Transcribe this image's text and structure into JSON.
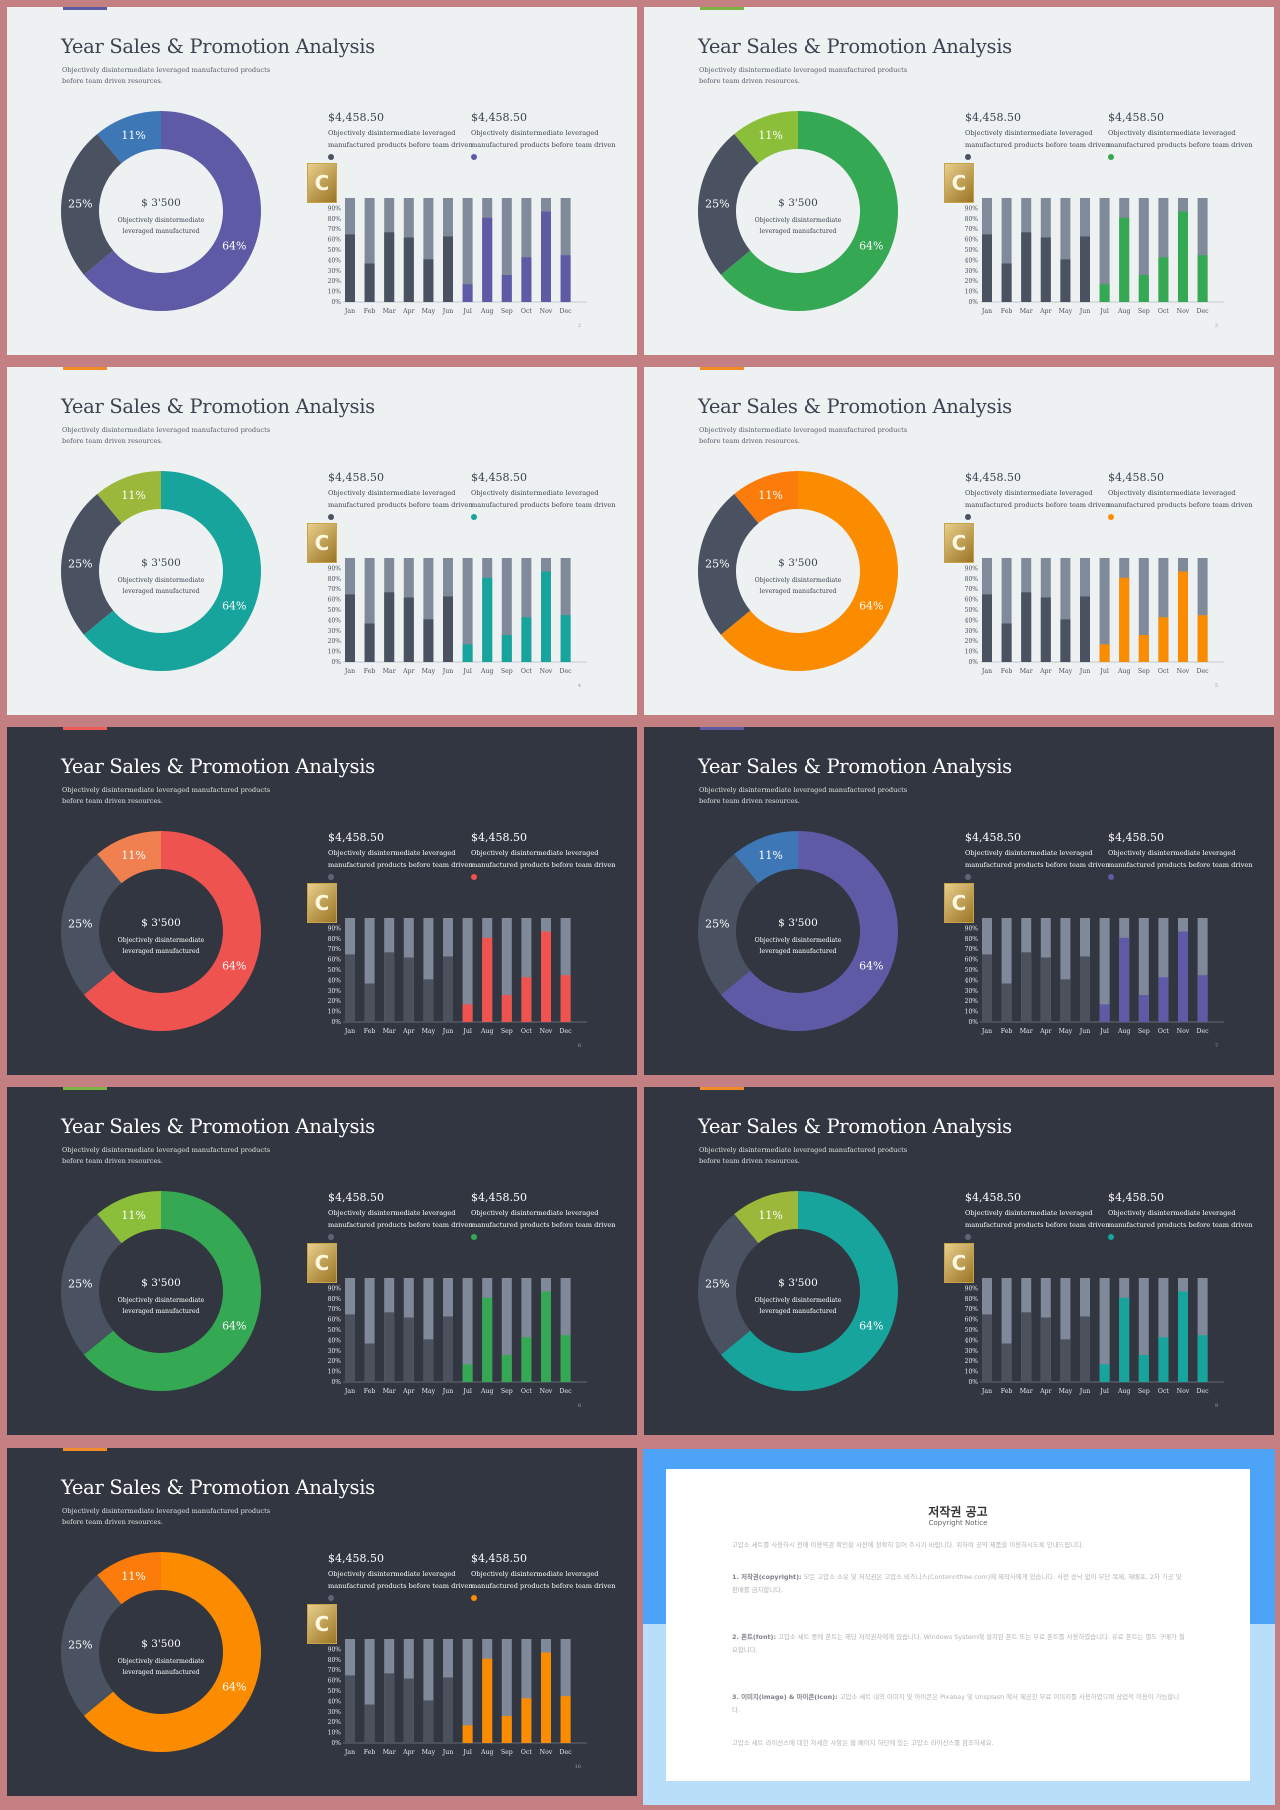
{
  "slides": [
    {
      "page": "2",
      "theme": "light",
      "accent": "#5c5aa3",
      "bar_accent": "#5e5aa6",
      "donut_gray": "#4a5160",
      "donut_small": "#3d77b6"
    },
    {
      "page": "3",
      "theme": "light",
      "accent": "#7cb342",
      "bar_accent": "#34a853",
      "donut_gray": "#4a5160",
      "donut_small": "#8bbf3a"
    },
    {
      "page": "4",
      "theme": "light",
      "accent": "#f28c28",
      "bar_accent": "#17a49d",
      "donut_gray": "#4a5160",
      "donut_small": "#9bb83a"
    },
    {
      "page": "5",
      "theme": "light",
      "accent": "#f28c28",
      "bar_accent": "#fb8c00",
      "donut_gray": "#4a5160",
      "donut_small": "#fb7c0a"
    },
    {
      "page": "6",
      "theme": "dark",
      "accent": "#ef5b56",
      "bar_accent": "#ef5350",
      "donut_gray": "#4a5160",
      "donut_small": "#f08050"
    },
    {
      "page": "7",
      "theme": "dark",
      "accent": "#5c5aa3",
      "bar_accent": "#5e5aa6",
      "donut_gray": "#4a5160",
      "donut_small": "#3d77b6"
    },
    {
      "page": "8",
      "theme": "dark",
      "accent": "#7cb342",
      "bar_accent": "#34a853",
      "donut_gray": "#4a5160",
      "donut_small": "#8bbf3a"
    },
    {
      "page": "9",
      "theme": "dark",
      "accent": "#f28c28",
      "bar_accent": "#17a49d",
      "donut_gray": "#4a5160",
      "donut_small": "#9bb83a"
    },
    {
      "page": "10",
      "theme": "dark",
      "accent": "#f28c28",
      "bar_accent": "#fb8c00",
      "donut_gray": "#4a5160",
      "donut_small": "#fb7c0a"
    }
  ],
  "slide_text": {
    "title": "Year Sales & Promotion Analysis",
    "subtitle": "Objectively disintermediate leveraged manufactured products before team driven resources.",
    "donut_center_value": "$ 3'500",
    "donut_center_desc": "Objectively disintermediate leveraged manufactured",
    "stat1_value": "$4,458.50",
    "stat1_desc": "Objectively disintermediate leveraged manufactured products before team driven",
    "stat2_value": "$4,458.50",
    "stat2_desc": "Objectively disintermediate leveraged manufactured products before team driven",
    "logo_letter": "C"
  },
  "chart_data": [
    {
      "type": "pie",
      "title": "",
      "categories": [
        "64%",
        "25%",
        "11%"
      ],
      "values": [
        64,
        25,
        11
      ]
    },
    {
      "type": "bar",
      "title": "",
      "categories": [
        "Jan",
        "Feb",
        "Mar",
        "Apr",
        "May",
        "Jun",
        "Jul",
        "Aug",
        "Sep",
        "Oct",
        "Nov",
        "Dec"
      ],
      "y_ticks": [
        "0%",
        "10%",
        "20%",
        "30%",
        "40%",
        "50%",
        "60%",
        "70%",
        "80%",
        "90%"
      ],
      "ylim": [
        0,
        100
      ],
      "series": [
        {
          "values": [
            65,
            37,
            67,
            62,
            41,
            63,
            17,
            81,
            26,
            43,
            87,
            45
          ]
        }
      ]
    }
  ],
  "notice": {
    "title": "저작권 공고",
    "subtitle": "Copyright Notice",
    "intro": "고맙소 세트를 사용하시 전에 이용약관 확인을 사전에 정확히 읽어 주시기 바랍니다. 위하여 공약 제품을 이용하시도록 안내드립니다.",
    "items": [
      {
        "head": "1. 저작권(copyright):",
        "text": "모든 고맙소 소유 및 저작권은 고맙소 비즈니스(Contenntfree.com)에 제작사에게 있습니다. 사전 승낙 없이 무단 복제, 재배포, 2차 가공 및 판매를 금지합니다."
      },
      {
        "head": "2. 폰트(font):",
        "text": "고맙소 세트 중에 폰트는 해당 저작권자에게 있습니다. Windows System에 설치된 폰트 또는 무료 폰트를 사용하였습니다. 유료 폰트는 별도 구매가 필요합니다."
      },
      {
        "head": "3. 이미지(image) & 아이콘(icon):",
        "text": "고맙소 세트 내의 이미지 및 아이콘은 Pixabay 및 Unsplash 에서 제공한 무료 이미지를 사용하였으며 상업적 이용이 가능합니다."
      }
    ],
    "footer": "고맙소 세트 라이선스에 대한 자세한 사항은 웹 페이지 하단에 있는 고맙소 라이선스를 참조하세요."
  }
}
